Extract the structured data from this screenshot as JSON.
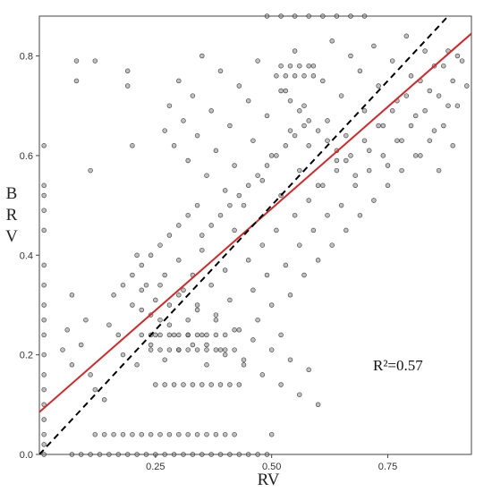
{
  "chart_data": {
    "type": "scatter",
    "title": "",
    "xlabel": "RV",
    "ylabel": "BRV",
    "xlim": [
      0.0,
      0.93
    ],
    "ylim": [
      0.0,
      0.88
    ],
    "x_ticks": [
      0.25,
      0.5,
      0.75
    ],
    "x_tick_labels": [
      "0.25",
      "0.50",
      "0.75"
    ],
    "y_ticks": [
      0.0,
      0.2,
      0.4,
      0.6,
      0.8
    ],
    "y_tick_labels": [
      "0.0",
      "0.2",
      "0.4",
      "0.6",
      "0.8"
    ],
    "grid": false,
    "annotation": "R²=0.57",
    "colors": {
      "points_fill": "#8c8c8c",
      "points_edge": "#1a1a1a",
      "fit_line": "#d62728",
      "identity_line": "#000000"
    },
    "lines": [
      {
        "style": "solid",
        "x": [
          0.0,
          0.93
        ],
        "y": [
          0.085,
          0.845
        ]
      },
      {
        "style": "dashed",
        "x": [
          0.0,
          0.93
        ],
        "y": [
          0.0,
          0.93
        ]
      }
    ],
    "points": [
      [
        0.01,
        0.62
      ],
      [
        0.01,
        0.54
      ],
      [
        0.01,
        0.52
      ],
      [
        0.01,
        0.49
      ],
      [
        0.01,
        0.45
      ],
      [
        0.01,
        0.38
      ],
      [
        0.01,
        0.34
      ],
      [
        0.01,
        0.3
      ],
      [
        0.01,
        0.27
      ],
      [
        0.01,
        0.24
      ],
      [
        0.01,
        0.2
      ],
      [
        0.01,
        0.16
      ],
      [
        0.01,
        0.13
      ],
      [
        0.01,
        0.1
      ],
      [
        0.01,
        0.07
      ],
      [
        0.01,
        0.04
      ],
      [
        0.01,
        0.02
      ],
      [
        0.01,
        0.0
      ],
      [
        0.05,
        0.21
      ],
      [
        0.06,
        0.25
      ],
      [
        0.07,
        0.18
      ],
      [
        0.07,
        0.32
      ],
      [
        0.08,
        0.79
      ],
      [
        0.08,
        0.75
      ],
      [
        0.09,
        0.22
      ],
      [
        0.1,
        0.27
      ],
      [
        0.11,
        0.16
      ],
      [
        0.12,
        0.13
      ],
      [
        0.14,
        0.11
      ],
      [
        0.12,
        0.79
      ],
      [
        0.11,
        0.57
      ],
      [
        0.15,
        0.26
      ],
      [
        0.16,
        0.32
      ],
      [
        0.17,
        0.24
      ],
      [
        0.18,
        0.2
      ],
      [
        0.19,
        0.74
      ],
      [
        0.19,
        0.77
      ],
      [
        0.2,
        0.62
      ],
      [
        0.21,
        0.4
      ],
      [
        0.21,
        0.18
      ],
      [
        0.22,
        0.29
      ],
      [
        0.23,
        0.34
      ],
      [
        0.24,
        0.22
      ],
      [
        0.25,
        0.31
      ],
      [
        0.25,
        0.24
      ],
      [
        0.26,
        0.27
      ],
      [
        0.27,
        0.19
      ],
      [
        0.27,
        0.36
      ],
      [
        0.28,
        0.3
      ],
      [
        0.29,
        0.24
      ],
      [
        0.3,
        0.21
      ],
      [
        0.3,
        0.39
      ],
      [
        0.31,
        0.33
      ],
      [
        0.32,
        0.27
      ],
      [
        0.33,
        0.22
      ],
      [
        0.33,
        0.36
      ],
      [
        0.34,
        0.3
      ],
      [
        0.35,
        0.24
      ],
      [
        0.35,
        0.41
      ],
      [
        0.36,
        0.18
      ],
      [
        0.37,
        0.34
      ],
      [
        0.38,
        0.28
      ],
      [
        0.39,
        0.21
      ],
      [
        0.4,
        0.37
      ],
      [
        0.41,
        0.31
      ],
      [
        0.42,
        0.45
      ],
      [
        0.43,
        0.25
      ],
      [
        0.44,
        0.19
      ],
      [
        0.45,
        0.39
      ],
      [
        0.46,
        0.33
      ],
      [
        0.47,
        0.27
      ],
      [
        0.48,
        0.42
      ],
      [
        0.49,
        0.36
      ],
      [
        0.5,
        0.3
      ],
      [
        0.51,
        0.45
      ],
      [
        0.52,
        0.24
      ],
      [
        0.53,
        0.38
      ],
      [
        0.54,
        0.32
      ],
      [
        0.55,
        0.48
      ],
      [
        0.56,
        0.42
      ],
      [
        0.57,
        0.36
      ],
      [
        0.58,
        0.51
      ],
      [
        0.59,
        0.45
      ],
      [
        0.6,
        0.39
      ],
      [
        0.61,
        0.54
      ],
      [
        0.62,
        0.48
      ],
      [
        0.63,
        0.42
      ],
      [
        0.64,
        0.57
      ],
      [
        0.65,
        0.5
      ],
      [
        0.66,
        0.45
      ],
      [
        0.67,
        0.6
      ],
      [
        0.68,
        0.54
      ],
      [
        0.69,
        0.48
      ],
      [
        0.7,
        0.63
      ],
      [
        0.71,
        0.57
      ],
      [
        0.72,
        0.51
      ],
      [
        0.73,
        0.66
      ],
      [
        0.74,
        0.6
      ],
      [
        0.75,
        0.54
      ],
      [
        0.76,
        0.69
      ],
      [
        0.77,
        0.63
      ],
      [
        0.78,
        0.57
      ],
      [
        0.79,
        0.72
      ],
      [
        0.8,
        0.66
      ],
      [
        0.81,
        0.6
      ],
      [
        0.82,
        0.75
      ],
      [
        0.83,
        0.69
      ],
      [
        0.84,
        0.63
      ],
      [
        0.85,
        0.78
      ],
      [
        0.86,
        0.72
      ],
      [
        0.87,
        0.66
      ],
      [
        0.88,
        0.81
      ],
      [
        0.89,
        0.75
      ],
      [
        0.9,
        0.7
      ],
      [
        0.91,
        0.79
      ],
      [
        0.92,
        0.74
      ],
      [
        0.27,
        0.65
      ],
      [
        0.28,
        0.7
      ],
      [
        0.29,
        0.62
      ],
      [
        0.3,
        0.75
      ],
      [
        0.31,
        0.67
      ],
      [
        0.32,
        0.59
      ],
      [
        0.33,
        0.72
      ],
      [
        0.34,
        0.64
      ],
      [
        0.35,
        0.8
      ],
      [
        0.36,
        0.56
      ],
      [
        0.37,
        0.69
      ],
      [
        0.38,
        0.61
      ],
      [
        0.39,
        0.77
      ],
      [
        0.4,
        0.53
      ],
      [
        0.41,
        0.66
      ],
      [
        0.42,
        0.58
      ],
      [
        0.43,
        0.74
      ],
      [
        0.44,
        0.5
      ],
      [
        0.45,
        0.71
      ],
      [
        0.46,
        0.63
      ],
      [
        0.47,
        0.79
      ],
      [
        0.48,
        0.55
      ],
      [
        0.49,
        0.68
      ],
      [
        0.5,
        0.6
      ],
      [
        0.51,
        0.76
      ],
      [
        0.52,
        0.52
      ],
      [
        0.53,
        0.73
      ],
      [
        0.54,
        0.65
      ],
      [
        0.55,
        0.81
      ],
      [
        0.56,
        0.57
      ],
      [
        0.57,
        0.7
      ],
      [
        0.58,
        0.62
      ],
      [
        0.59,
        0.78
      ],
      [
        0.6,
        0.54
      ],
      [
        0.61,
        0.75
      ],
      [
        0.62,
        0.67
      ],
      [
        0.63,
        0.83
      ],
      [
        0.64,
        0.59
      ],
      [
        0.65,
        0.72
      ],
      [
        0.66,
        0.64
      ],
      [
        0.67,
        0.8
      ],
      [
        0.68,
        0.56
      ],
      [
        0.69,
        0.77
      ],
      [
        0.7,
        0.69
      ],
      [
        0.71,
        0.61
      ],
      [
        0.72,
        0.82
      ],
      [
        0.73,
        0.74
      ],
      [
        0.74,
        0.66
      ],
      [
        0.75,
        0.58
      ],
      [
        0.76,
        0.79
      ],
      [
        0.77,
        0.71
      ],
      [
        0.78,
        0.63
      ],
      [
        0.79,
        0.84
      ],
      [
        0.8,
        0.76
      ],
      [
        0.81,
        0.68
      ],
      [
        0.82,
        0.6
      ],
      [
        0.83,
        0.81
      ],
      [
        0.84,
        0.73
      ],
      [
        0.85,
        0.65
      ],
      [
        0.86,
        0.57
      ],
      [
        0.87,
        0.78
      ],
      [
        0.88,
        0.7
      ],
      [
        0.89,
        0.62
      ],
      [
        0.9,
        0.8
      ],
      [
        0.2,
        0.3
      ],
      [
        0.22,
        0.33
      ],
      [
        0.24,
        0.28
      ],
      [
        0.26,
        0.34
      ],
      [
        0.28,
        0.26
      ],
      [
        0.3,
        0.32
      ],
      [
        0.32,
        0.24
      ],
      [
        0.34,
        0.29
      ],
      [
        0.36,
        0.22
      ],
      [
        0.38,
        0.27
      ],
      [
        0.4,
        0.2
      ],
      [
        0.42,
        0.25
      ],
      [
        0.44,
        0.18
      ],
      [
        0.46,
        0.23
      ],
      [
        0.48,
        0.16
      ],
      [
        0.5,
        0.21
      ],
      [
        0.52,
        0.14
      ],
      [
        0.54,
        0.19
      ],
      [
        0.56,
        0.12
      ],
      [
        0.58,
        0.17
      ],
      [
        0.6,
        0.1
      ],
      [
        0.22,
        0.24
      ],
      [
        0.24,
        0.24
      ],
      [
        0.26,
        0.24
      ],
      [
        0.28,
        0.24
      ],
      [
        0.3,
        0.24
      ],
      [
        0.32,
        0.24
      ],
      [
        0.34,
        0.24
      ],
      [
        0.36,
        0.24
      ],
      [
        0.38,
        0.24
      ],
      [
        0.4,
        0.24
      ],
      [
        0.24,
        0.21
      ],
      [
        0.26,
        0.21
      ],
      [
        0.28,
        0.21
      ],
      [
        0.3,
        0.21
      ],
      [
        0.32,
        0.21
      ],
      [
        0.34,
        0.21
      ],
      [
        0.36,
        0.21
      ],
      [
        0.38,
        0.21
      ],
      [
        0.4,
        0.21
      ],
      [
        0.42,
        0.21
      ],
      [
        0.25,
        0.14
      ],
      [
        0.27,
        0.14
      ],
      [
        0.29,
        0.14
      ],
      [
        0.31,
        0.14
      ],
      [
        0.33,
        0.14
      ],
      [
        0.35,
        0.14
      ],
      [
        0.37,
        0.14
      ],
      [
        0.39,
        0.14
      ],
      [
        0.41,
        0.14
      ],
      [
        0.43,
        0.14
      ],
      [
        0.12,
        0.04
      ],
      [
        0.14,
        0.04
      ],
      [
        0.16,
        0.04
      ],
      [
        0.18,
        0.04
      ],
      [
        0.2,
        0.04
      ],
      [
        0.22,
        0.04
      ],
      [
        0.24,
        0.04
      ],
      [
        0.26,
        0.04
      ],
      [
        0.28,
        0.04
      ],
      [
        0.3,
        0.04
      ],
      [
        0.32,
        0.04
      ],
      [
        0.34,
        0.04
      ],
      [
        0.36,
        0.04
      ],
      [
        0.38,
        0.04
      ],
      [
        0.4,
        0.04
      ],
      [
        0.42,
        0.04
      ],
      [
        0.5,
        0.04
      ],
      [
        0.07,
        0.0
      ],
      [
        0.09,
        0.0
      ],
      [
        0.11,
        0.0
      ],
      [
        0.13,
        0.0
      ],
      [
        0.15,
        0.0
      ],
      [
        0.17,
        0.0
      ],
      [
        0.19,
        0.0
      ],
      [
        0.21,
        0.0
      ],
      [
        0.23,
        0.0
      ],
      [
        0.25,
        0.0
      ],
      [
        0.27,
        0.0
      ],
      [
        0.29,
        0.0
      ],
      [
        0.31,
        0.0
      ],
      [
        0.33,
        0.0
      ],
      [
        0.35,
        0.0
      ],
      [
        0.37,
        0.0
      ],
      [
        0.39,
        0.0
      ],
      [
        0.41,
        0.0
      ],
      [
        0.43,
        0.0
      ],
      [
        0.45,
        0.0
      ],
      [
        0.47,
        0.0
      ],
      [
        0.49,
        0.0
      ],
      [
        0.52,
        0.78
      ],
      [
        0.53,
        0.76
      ],
      [
        0.54,
        0.78
      ],
      [
        0.55,
        0.76
      ],
      [
        0.56,
        0.78
      ],
      [
        0.57,
        0.76
      ],
      [
        0.58,
        0.78
      ],
      [
        0.59,
        0.76
      ],
      [
        0.52,
        0.73
      ],
      [
        0.54,
        0.71
      ],
      [
        0.56,
        0.69
      ],
      [
        0.58,
        0.67
      ],
      [
        0.6,
        0.65
      ],
      [
        0.62,
        0.63
      ],
      [
        0.64,
        0.61
      ],
      [
        0.66,
        0.59
      ],
      [
        0.49,
        0.88
      ],
      [
        0.52,
        0.88
      ],
      [
        0.55,
        0.88
      ],
      [
        0.58,
        0.88
      ],
      [
        0.61,
        0.88
      ],
      [
        0.64,
        0.88
      ],
      [
        0.67,
        0.88
      ],
      [
        0.7,
        0.88
      ],
      [
        0.35,
        0.44
      ],
      [
        0.37,
        0.46
      ],
      [
        0.39,
        0.48
      ],
      [
        0.41,
        0.5
      ],
      [
        0.43,
        0.52
      ],
      [
        0.45,
        0.54
      ],
      [
        0.47,
        0.56
      ],
      [
        0.49,
        0.58
      ],
      [
        0.51,
        0.6
      ],
      [
        0.53,
        0.62
      ],
      [
        0.55,
        0.64
      ],
      [
        0.57,
        0.66
      ],
      [
        0.18,
        0.34
      ],
      [
        0.2,
        0.36
      ],
      [
        0.22,
        0.38
      ],
      [
        0.24,
        0.4
      ],
      [
        0.26,
        0.42
      ],
      [
        0.28,
        0.44
      ],
      [
        0.3,
        0.46
      ],
      [
        0.32,
        0.48
      ],
      [
        0.34,
        0.5
      ]
    ]
  }
}
